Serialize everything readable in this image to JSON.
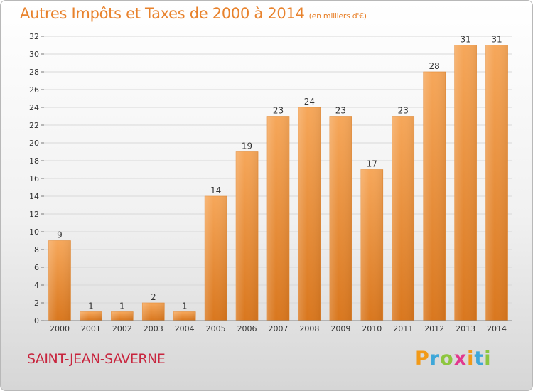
{
  "title": "Autres Impôts et Taxes de 2000 à 2014",
  "unit_note": "(en milliers d'€)",
  "town": "SAINT-JEAN-SAVERNE",
  "brand": {
    "letters": [
      "P",
      "r",
      "o",
      "x",
      "i",
      "t",
      "i"
    ],
    "colors": [
      "#f29a18",
      "#3ea7d9",
      "#8dc63f",
      "#e2388e",
      "#f29a18",
      "#3ea7d9",
      "#8dc63f"
    ]
  },
  "colors": {
    "title": "#e8822c",
    "town": "#c8253e",
    "bar_top": "#f6a75a",
    "bar_bottom": "#d9771e"
  },
  "chart_data": {
    "type": "bar",
    "title": "Autres Impôts et Taxes de 2000 à 2014",
    "subtitle": "(en milliers d'€)",
    "categories": [
      "2000",
      "2001",
      "2002",
      "2003",
      "2004",
      "2005",
      "2006",
      "2007",
      "2008",
      "2009",
      "2010",
      "2011",
      "2012",
      "2013",
      "2014"
    ],
    "values": [
      9,
      1,
      1,
      2,
      1,
      14,
      19,
      23,
      24,
      23,
      17,
      23,
      28,
      31,
      31
    ],
    "ylim": [
      0,
      32
    ],
    "yticks": [
      0,
      2,
      4,
      6,
      8,
      10,
      12,
      14,
      16,
      18,
      20,
      22,
      24,
      26,
      28,
      30,
      32
    ],
    "grid": true,
    "legend": "none"
  }
}
